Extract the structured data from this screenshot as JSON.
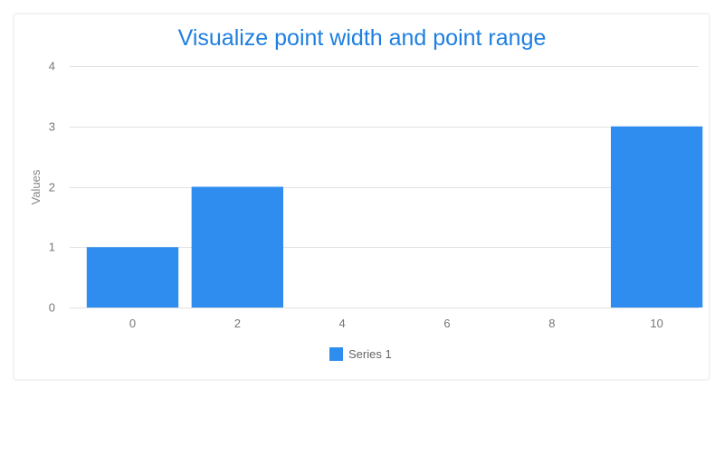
{
  "chart_data": {
    "type": "bar",
    "title": "Visualize point width and point range",
    "ylabel": "Values",
    "xlabel": "",
    "x_ticks": [
      "0",
      "2",
      "4",
      "6",
      "8",
      "10"
    ],
    "y_ticks": [
      "0",
      "1",
      "2",
      "3",
      "4"
    ],
    "ylim": [
      0,
      4
    ],
    "xlim": [
      -1.2,
      10.8
    ],
    "grid": true,
    "legend_position": "bottom-center",
    "series": [
      {
        "name": "Series 1",
        "color": "#2f8def",
        "points": [
          {
            "x": 0,
            "y": 1
          },
          {
            "x": 2,
            "y": 2
          },
          {
            "x": 10,
            "y": 3
          }
        ]
      }
    ]
  }
}
